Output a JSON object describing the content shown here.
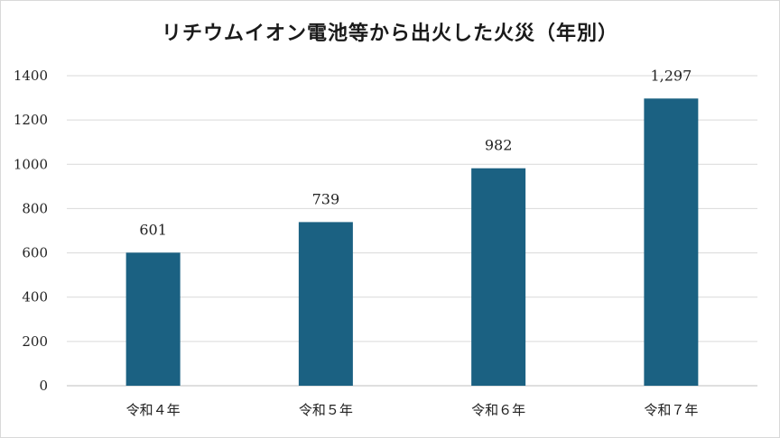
{
  "chart_data": {
    "type": "bar",
    "title": "リチウムイオン電池等から出火した火災（年別）",
    "xlabel": "",
    "ylabel": "",
    "categories": [
      "令和４年",
      "令和５年",
      "令和６年",
      "令和７年"
    ],
    "values": [
      601,
      739,
      982,
      1297
    ],
    "data_labels": [
      "601",
      "739",
      "982",
      "1,297"
    ],
    "ylim": [
      0,
      1400
    ],
    "yticks": [
      0,
      200,
      400,
      600,
      800,
      1000,
      1200,
      1400
    ],
    "grid": true,
    "legend": "none",
    "bar_color": "#1b6182",
    "grid_color": "#d9d9d9"
  }
}
